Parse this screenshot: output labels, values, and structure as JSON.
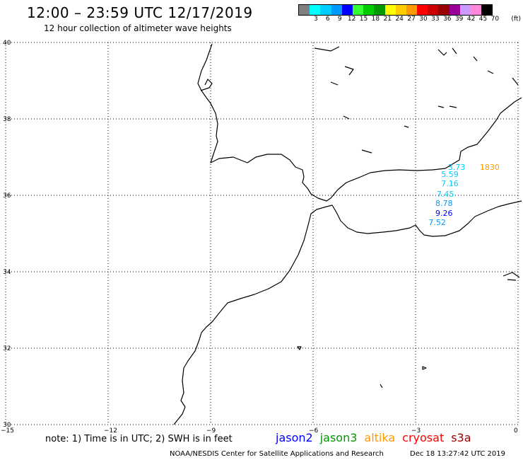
{
  "header": {
    "title": "12:00 – 23:59 UTC 12/17/2019",
    "subtitle": "12 hour collection of altimeter wave heights"
  },
  "legend": {
    "unit": "(ft)",
    "bins": [
      {
        "label": "",
        "color": "#808080"
      },
      {
        "label": "3",
        "color": "#00ffff"
      },
      {
        "label": "6",
        "color": "#00ccff"
      },
      {
        "label": "9",
        "color": "#0099ff"
      },
      {
        "label": "12",
        "color": "#0000ff"
      },
      {
        "label": "15",
        "color": "#33ff33"
      },
      {
        "label": "18",
        "color": "#00cc00"
      },
      {
        "label": "21",
        "color": "#009900"
      },
      {
        "label": "24",
        "color": "#ffff00"
      },
      {
        "label": "27",
        "color": "#ffcc00"
      },
      {
        "label": "30",
        "color": "#ff9900"
      },
      {
        "label": "33",
        "color": "#ff0000"
      },
      {
        "label": "36",
        "color": "#cc0000"
      },
      {
        "label": "39",
        "color": "#990000"
      },
      {
        "label": "42",
        "color": "#990099"
      },
      {
        "label": "45",
        "color": "#cc99ff"
      },
      {
        "label": "70",
        "color": "#ff88dd"
      },
      {
        "label": "",
        "color": "#000000"
      }
    ]
  },
  "axes": {
    "lat_ticks": [
      "40",
      "38",
      "36",
      "34",
      "32",
      "30"
    ],
    "lon_ticks": [
      "−15",
      "−12",
      "−9",
      "−6",
      "−3",
      "0"
    ]
  },
  "observations": [
    {
      "value": "3.73",
      "lon": -2.05,
      "lat": 36.73,
      "color": "#00ccff"
    },
    {
      "value": "5.59",
      "lon": -2.25,
      "lat": 36.53,
      "color": "#00ccff"
    },
    {
      "value": "7.16",
      "lon": -2.25,
      "lat": 36.29,
      "color": "#00ccff"
    },
    {
      "value": "7.45",
      "lon": -2.38,
      "lat": 36.02,
      "color": "#00ccff"
    },
    {
      "value": "8.78",
      "lon": -2.42,
      "lat": 35.77,
      "color": "#0099ff"
    },
    {
      "value": "9.26",
      "lon": -2.42,
      "lat": 35.52,
      "color": "#0000ff"
    },
    {
      "value": "7.52",
      "lon": -2.62,
      "lat": 35.27,
      "color": "#0099ff"
    },
    {
      "value": "1830",
      "lon": -1.12,
      "lat": 36.73,
      "color": "#ff9900"
    }
  ],
  "footer": {
    "note": "note: 1) Time is in UTC; 2) SWH is in feet",
    "satellites": [
      {
        "name": "jason2",
        "color": "#0000ff"
      },
      {
        "name": "jason3",
        "color": "#009900"
      },
      {
        "name": "altika",
        "color": "#ff9900"
      },
      {
        "name": "cryosat",
        "color": "#ff0000"
      },
      {
        "name": "s3a",
        "color": "#990000"
      }
    ],
    "credit": "NOAA/NESDIS Center for Satellite Applications and Research",
    "timestamp": "Dec 18 13:27:42 UTC 2019"
  }
}
